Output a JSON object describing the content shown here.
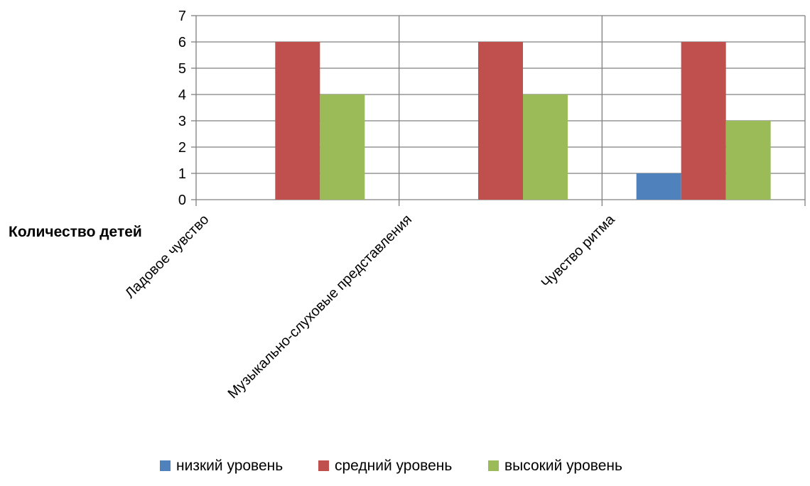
{
  "chart_data": {
    "type": "bar",
    "ylabel": "Количество детей",
    "xlabel": "",
    "categories": [
      "Ладовое чувство",
      "Музыкально-слуховые представления",
      "Чувство ритма"
    ],
    "series": [
      {
        "name": "низкий уровень",
        "color": "#4f81bd",
        "values": [
          0,
          0,
          1
        ]
      },
      {
        "name": "средний уровень",
        "color": "#c0504d",
        "values": [
          6,
          6,
          6
        ]
      },
      {
        "name": "высокий уровень",
        "color": "#9bbb59",
        "values": [
          4,
          4,
          3
        ]
      }
    ],
    "ylim": [
      0,
      7
    ],
    "yticks": [
      0,
      1,
      2,
      3,
      4,
      5,
      6,
      7
    ],
    "grid": true,
    "legend": "bottom"
  }
}
